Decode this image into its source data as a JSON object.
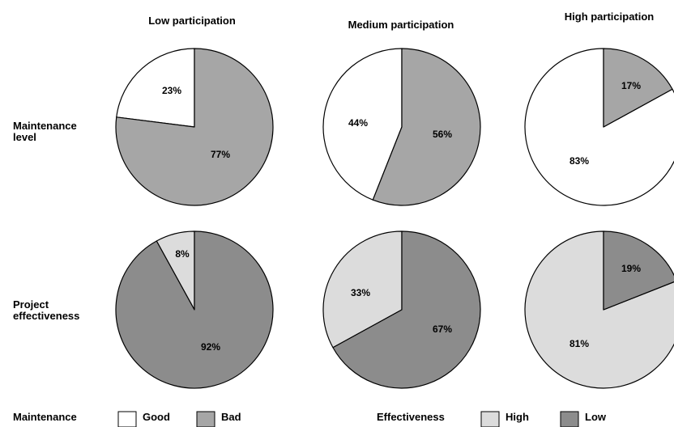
{
  "chart_data": {
    "type": "pie",
    "columns": [
      "Low participation",
      "Medium participation",
      "High participation"
    ],
    "rows": [
      {
        "label": "Maintenance\nlevel",
        "categories": [
          "Good",
          "Bad"
        ],
        "pies": [
          {
            "values": [
              23,
              77
            ],
            "labels": [
              "23%",
              "77%"
            ]
          },
          {
            "values": [
              44,
              56
            ],
            "labels": [
              "44%",
              "56%"
            ]
          },
          {
            "values": [
              83,
              17
            ],
            "labels": [
              "83%",
              "17%"
            ]
          }
        ]
      },
      {
        "label": "Project\neffectiveness",
        "categories": [
          "High",
          "Low"
        ],
        "pies": [
          {
            "values": [
              8,
              92
            ],
            "labels": [
              "8%",
              "92%"
            ]
          },
          {
            "values": [
              33,
              67
            ],
            "labels": [
              "33%",
              "67%"
            ]
          },
          {
            "values": [
              81,
              19
            ],
            "labels": [
              "81%",
              "19%"
            ]
          }
        ]
      }
    ],
    "legends": [
      {
        "title": "Maintenance",
        "items": [
          {
            "label": "Good",
            "color": "#ffffff"
          },
          {
            "label": "Bad",
            "color": "#a6a6a6"
          }
        ]
      },
      {
        "title": "Effectiveness",
        "items": [
          {
            "label": "High",
            "color": "#dcdcdc"
          },
          {
            "label": "Low",
            "color": "#8c8c8c"
          }
        ]
      }
    ],
    "colors": {
      "maintenance": {
        "Good": "#ffffff",
        "Bad": "#a6a6a6"
      },
      "effectiveness": {
        "High": "#dcdcdc",
        "Low": "#8c8c8c"
      }
    }
  }
}
